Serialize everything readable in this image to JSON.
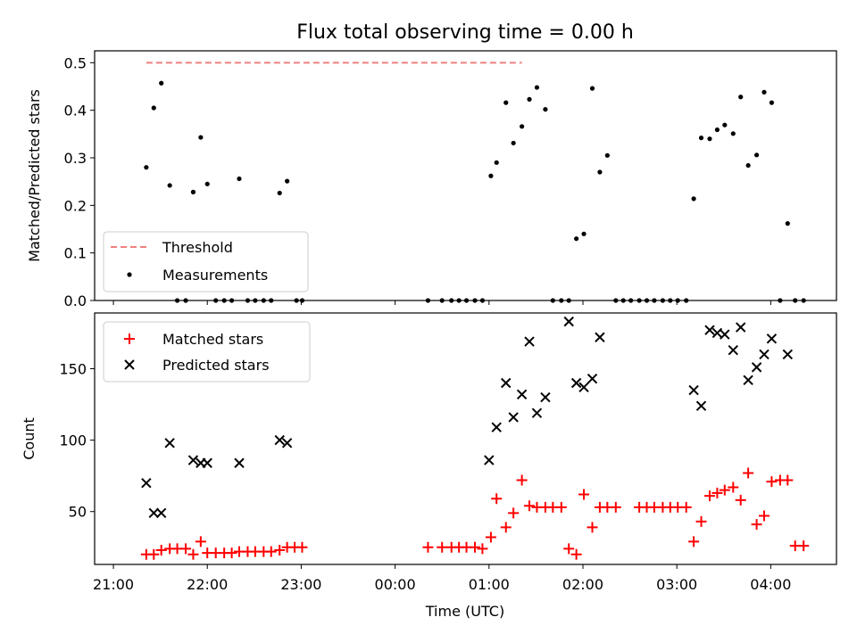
{
  "figure": {
    "title": "Flux total observing time = 0.00 h",
    "xlabel": "Time (UTC)"
  },
  "chart_data": [
    {
      "type": "scatter",
      "title": "Flux total observing time = 0.00 h",
      "ylabel": "Matched/Predicted stars",
      "xlabel": "",
      "x_unit": "hours since 21:00 UTC",
      "xlim": [
        -0.2,
        7.7
      ],
      "ylim": [
        0,
        0.525
      ],
      "yticks": [
        0.0,
        0.1,
        0.2,
        0.3,
        0.4,
        0.5
      ],
      "ytick_labels": [
        "0.0",
        "0.1",
        "0.2",
        "0.3",
        "0.4",
        "0.5"
      ],
      "legend": {
        "position": "lower-left",
        "entries": [
          "Threshold",
          "Measurements"
        ]
      },
      "threshold": {
        "name": "Threshold",
        "y": 0.5,
        "x_range": [
          0.35,
          4.35
        ],
        "color": "#f08080"
      },
      "series": [
        {
          "name": "Measurements",
          "color": "#000000",
          "x": [
            0.35,
            0.43,
            0.51,
            0.6,
            0.68,
            0.77,
            0.85,
            0.93,
            1.0,
            1.09,
            1.18,
            1.26,
            1.34,
            1.43,
            1.51,
            1.6,
            1.68,
            1.77,
            1.85,
            1.95,
            2.01,
            3.35,
            3.5,
            3.6,
            3.68,
            3.76,
            3.85,
            3.93,
            4.02,
            4.08,
            4.18,
            4.26,
            4.35,
            4.43,
            4.51,
            4.6,
            4.68,
            4.77,
            4.85,
            4.93,
            5.01,
            5.1,
            5.18,
            5.26,
            5.35,
            5.43,
            5.51,
            5.6,
            5.68,
            5.76,
            5.85,
            5.93,
            6.01,
            6.1,
            6.18,
            6.26,
            6.35,
            6.43,
            6.51,
            6.6,
            6.68,
            6.76,
            6.85,
            6.93,
            7.01,
            7.1,
            7.18,
            7.26,
            7.35
          ],
          "y": [
            0.28,
            0.405,
            0.457,
            0.242,
            0.0,
            0.0,
            0.228,
            0.343,
            0.245,
            0.0,
            0.0,
            0.0,
            0.256,
            0.0,
            0.0,
            0.0,
            0.0,
            0.226,
            0.251,
            0.0,
            0.0,
            0.0,
            0.0,
            0.0,
            0.0,
            0.0,
            0.0,
            0.0,
            0.262,
            0.29,
            0.416,
            0.331,
            0.366,
            0.423,
            0.448,
            0.402,
            0.0,
            0.0,
            0.0,
            0.13,
            0.14,
            0.446,
            0.27,
            0.305,
            0.0,
            0.0,
            0.0,
            0.0,
            0.0,
            0.0,
            0.0,
            0.0,
            0.0,
            0.0,
            0.214,
            0.342,
            0.34,
            0.359,
            0.369,
            0.351,
            0.428,
            0.284,
            0.306,
            0.438,
            0.416,
            0.0,
            0.162,
            0.0,
            0.0
          ]
        }
      ]
    },
    {
      "type": "scatter",
      "title": "",
      "ylabel": "Count",
      "xlabel": "Time (UTC)",
      "x_unit": "hours since 21:00 UTC",
      "xlim": [
        -0.2,
        7.7
      ],
      "ylim": [
        13,
        189
      ],
      "yticks": [
        50,
        100,
        150
      ],
      "ytick_labels": [
        "50",
        "100",
        "150"
      ],
      "xticks": [
        0,
        1,
        2,
        3,
        4,
        5,
        6,
        7
      ],
      "xtick_labels": [
        "21:00",
        "22:00",
        "23:00",
        "00:00",
        "01:00",
        "02:00",
        "03:00",
        "04:00"
      ],
      "legend": {
        "position": "top-left",
        "entries": [
          "Matched stars",
          "Predicted stars"
        ]
      },
      "series": [
        {
          "name": "Matched stars",
          "color": "#ff0000",
          "marker": "plus",
          "x": [
            0.35,
            0.43,
            0.51,
            0.6,
            0.68,
            0.77,
            0.85,
            0.93,
            1.0,
            1.09,
            1.18,
            1.26,
            1.34,
            1.43,
            1.51,
            1.6,
            1.68,
            1.77,
            1.85,
            1.93,
            2.01,
            3.35,
            3.5,
            3.6,
            3.68,
            3.76,
            3.85,
            3.93,
            4.02,
            4.08,
            4.18,
            4.26,
            4.35,
            4.43,
            4.51,
            4.6,
            4.68,
            4.77,
            4.85,
            4.93,
            5.01,
            5.1,
            5.18,
            5.26,
            5.35,
            5.6,
            5.68,
            5.76,
            5.85,
            5.93,
            6.01,
            6.1,
            6.18,
            6.26,
            6.35,
            6.43,
            6.51,
            6.6,
            6.68,
            6.76,
            6.85,
            6.93,
            7.01,
            7.1,
            7.18,
            7.26,
            7.35
          ],
          "y": [
            20,
            20,
            23,
            24,
            24,
            24,
            20,
            29,
            21,
            21,
            21,
            21,
            22,
            22,
            22,
            22,
            22,
            23,
            25,
            25,
            25,
            25,
            25,
            25,
            25,
            25,
            25,
            24,
            32,
            59,
            39,
            49,
            72,
            54,
            53,
            53,
            53,
            53,
            24,
            20,
            62,
            39,
            53,
            53,
            53,
            53,
            53,
            53,
            53,
            53,
            53,
            53,
            29,
            43,
            61,
            63,
            65,
            67,
            58,
            77,
            41,
            47,
            71,
            72,
            72,
            26,
            26
          ]
        },
        {
          "name": "Predicted stars",
          "color": "#000000",
          "marker": "x",
          "x": [
            0.35,
            0.43,
            0.51,
            0.6,
            0.85,
            0.93,
            1.0,
            1.34,
            1.77,
            1.85,
            4.0,
            4.08,
            4.18,
            4.26,
            4.35,
            4.43,
            4.51,
            4.6,
            4.85,
            4.93,
            5.01,
            5.1,
            5.18,
            6.18,
            6.26,
            6.35,
            6.43,
            6.51,
            6.6,
            6.68,
            6.76,
            6.85,
            6.93,
            7.01,
            7.18
          ],
          "y": [
            70,
            49,
            49,
            98,
            86,
            84,
            84,
            84,
            100,
            98,
            86,
            109,
            140,
            116,
            132,
            169,
            119,
            130,
            183,
            140,
            137,
            143,
            172,
            135,
            124,
            177,
            175,
            174,
            163,
            179,
            142,
            151,
            160,
            171,
            160
          ]
        }
      ]
    }
  ]
}
